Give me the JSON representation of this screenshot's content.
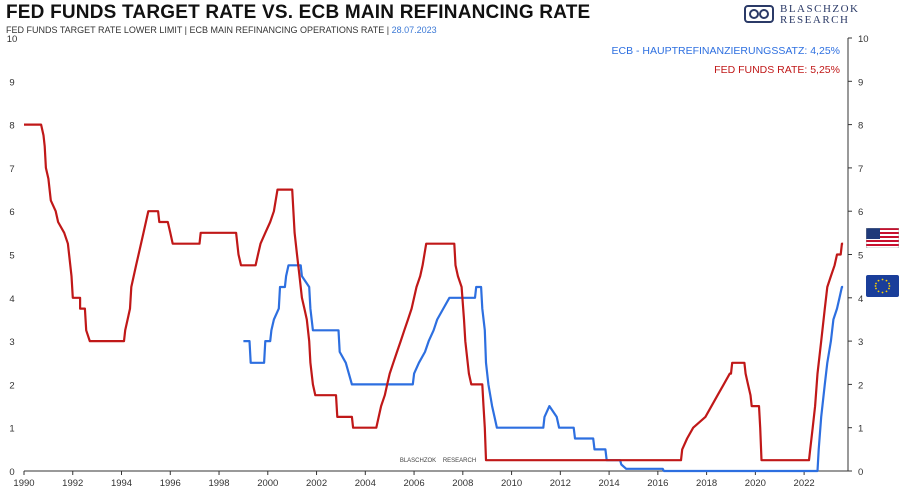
{
  "title": "FED FUNDS TARGET RATE  VS.  ECB MAIN REFINANCING RATE",
  "subtitle": "FED FUNDS TARGET RATE LOWER LIMIT | ECB MAIN REFINANCING OPERATIONS RATE |",
  "date": "28.07.2023",
  "logo": {
    "line1": "BLASCHZOK",
    "line2": "RESEARCH"
  },
  "watermark": "BLASCHZOK    RESEARCH",
  "flags": {
    "top": "us-flag-icon",
    "bottom": "eu-flag-icon"
  },
  "colors": {
    "fed": "#c01818",
    "ecb": "#2d6fe0",
    "axis": "#333333",
    "date": "#3d7ad6"
  },
  "chart_data": {
    "type": "line",
    "title": "FED FUNDS TARGET RATE  VS.  ECB MAIN REFINANCING RATE",
    "xlim": [
      1990,
      2023.8
    ],
    "ylim": [
      0,
      10
    ],
    "xticks": [
      1990,
      1992,
      1994,
      1996,
      1998,
      2000,
      2002,
      2004,
      2006,
      2008,
      2010,
      2012,
      2014,
      2016,
      2018,
      2020,
      2022
    ],
    "yticks": [
      0,
      1,
      2,
      3,
      4,
      5,
      6,
      7,
      8,
      9,
      10
    ],
    "grid": false,
    "legend_position": "top-right",
    "series": [
      {
        "name": "FED FUNDS RATE: 5,25%",
        "color": "#c01818",
        "points": [
          [
            1990.0,
            8.0
          ],
          [
            1990.7,
            8.0
          ],
          [
            1990.8,
            7.75
          ],
          [
            1990.85,
            7.5
          ],
          [
            1990.9,
            7.0
          ],
          [
            1991.0,
            6.75
          ],
          [
            1991.1,
            6.25
          ],
          [
            1991.3,
            6.0
          ],
          [
            1991.4,
            5.75
          ],
          [
            1991.65,
            5.5
          ],
          [
            1991.8,
            5.25
          ],
          [
            1991.85,
            5.0
          ],
          [
            1991.95,
            4.5
          ],
          [
            1992.0,
            4.0
          ],
          [
            1992.3,
            4.0
          ],
          [
            1992.3,
            3.75
          ],
          [
            1992.5,
            3.75
          ],
          [
            1992.55,
            3.25
          ],
          [
            1992.7,
            3.0
          ],
          [
            1994.1,
            3.0
          ],
          [
            1994.15,
            3.25
          ],
          [
            1994.25,
            3.5
          ],
          [
            1994.35,
            3.75
          ],
          [
            1994.4,
            4.25
          ],
          [
            1994.6,
            4.75
          ],
          [
            1994.9,
            5.5
          ],
          [
            1995.1,
            6.0
          ],
          [
            1995.5,
            6.0
          ],
          [
            1995.55,
            5.75
          ],
          [
            1995.9,
            5.75
          ],
          [
            1996.0,
            5.5
          ],
          [
            1996.1,
            5.25
          ],
          [
            1997.2,
            5.25
          ],
          [
            1997.25,
            5.5
          ],
          [
            1998.7,
            5.5
          ],
          [
            1998.75,
            5.25
          ],
          [
            1998.8,
            5.0
          ],
          [
            1998.9,
            4.75
          ],
          [
            1999.5,
            4.75
          ],
          [
            1999.6,
            5.0
          ],
          [
            1999.7,
            5.25
          ],
          [
            1999.9,
            5.5
          ],
          [
            2000.1,
            5.75
          ],
          [
            2000.25,
            6.0
          ],
          [
            2000.4,
            6.5
          ],
          [
            2001.0,
            6.5
          ],
          [
            2001.05,
            6.0
          ],
          [
            2001.1,
            5.5
          ],
          [
            2001.2,
            5.0
          ],
          [
            2001.3,
            4.5
          ],
          [
            2001.4,
            4.0
          ],
          [
            2001.5,
            3.75
          ],
          [
            2001.6,
            3.5
          ],
          [
            2001.7,
            3.0
          ],
          [
            2001.75,
            2.5
          ],
          [
            2001.85,
            2.0
          ],
          [
            2001.95,
            1.75
          ],
          [
            2002.8,
            1.75
          ],
          [
            2002.85,
            1.25
          ],
          [
            2003.45,
            1.25
          ],
          [
            2003.5,
            1.0
          ],
          [
            2004.45,
            1.0
          ],
          [
            2004.55,
            1.25
          ],
          [
            2004.65,
            1.5
          ],
          [
            2004.8,
            1.75
          ],
          [
            2004.9,
            2.0
          ],
          [
            2005.0,
            2.25
          ],
          [
            2005.15,
            2.5
          ],
          [
            2005.3,
            2.75
          ],
          [
            2005.45,
            3.0
          ],
          [
            2005.6,
            3.25
          ],
          [
            2005.75,
            3.5
          ],
          [
            2005.9,
            3.75
          ],
          [
            2006.1,
            4.25
          ],
          [
            2006.25,
            4.5
          ],
          [
            2006.35,
            4.75
          ],
          [
            2006.5,
            5.25
          ],
          [
            2007.65,
            5.25
          ],
          [
            2007.7,
            4.75
          ],
          [
            2007.8,
            4.5
          ],
          [
            2007.95,
            4.25
          ],
          [
            2008.05,
            3.5
          ],
          [
            2008.1,
            3.0
          ],
          [
            2008.25,
            2.25
          ],
          [
            2008.35,
            2.0
          ],
          [
            2008.8,
            2.0
          ],
          [
            2008.85,
            1.5
          ],
          [
            2008.9,
            1.0
          ],
          [
            2008.95,
            0.25
          ],
          [
            2015.95,
            0.25
          ],
          [
            2016.0,
            0.25
          ],
          [
            2016.95,
            0.25
          ],
          [
            2017.0,
            0.5
          ],
          [
            2017.2,
            0.75
          ],
          [
            2017.45,
            1.0
          ],
          [
            2017.95,
            1.25
          ],
          [
            2018.2,
            1.5
          ],
          [
            2018.45,
            1.75
          ],
          [
            2018.7,
            2.0
          ],
          [
            2018.95,
            2.25
          ],
          [
            2019.0,
            2.25
          ],
          [
            2019.05,
            2.5
          ],
          [
            2019.55,
            2.5
          ],
          [
            2019.6,
            2.25
          ],
          [
            2019.7,
            2.0
          ],
          [
            2019.8,
            1.75
          ],
          [
            2019.85,
            1.5
          ],
          [
            2020.15,
            1.5
          ],
          [
            2020.2,
            1.0
          ],
          [
            2020.25,
            0.25
          ],
          [
            2022.2,
            0.25
          ],
          [
            2022.25,
            0.5
          ],
          [
            2022.35,
            1.0
          ],
          [
            2022.45,
            1.5
          ],
          [
            2022.55,
            2.25
          ],
          [
            2022.7,
            3.0
          ],
          [
            2022.85,
            3.75
          ],
          [
            2022.95,
            4.25
          ],
          [
            2023.1,
            4.5
          ],
          [
            2023.25,
            4.75
          ],
          [
            2023.35,
            5.0
          ],
          [
            2023.5,
            5.0
          ],
          [
            2023.55,
            5.25
          ],
          [
            2023.6,
            5.25
          ]
        ]
      },
      {
        "name": "ECB - HAUPTREFINANZIERUNGSSATZ: 4,25%",
        "color": "#2d6fe0",
        "points": [
          [
            1999.0,
            3.0
          ],
          [
            1999.25,
            3.0
          ],
          [
            1999.3,
            2.5
          ],
          [
            1999.85,
            2.5
          ],
          [
            1999.9,
            3.0
          ],
          [
            2000.1,
            3.0
          ],
          [
            2000.15,
            3.25
          ],
          [
            2000.25,
            3.5
          ],
          [
            2000.45,
            3.75
          ],
          [
            2000.5,
            4.25
          ],
          [
            2000.7,
            4.25
          ],
          [
            2000.75,
            4.5
          ],
          [
            2000.85,
            4.75
          ],
          [
            2001.35,
            4.75
          ],
          [
            2001.4,
            4.5
          ],
          [
            2001.7,
            4.25
          ],
          [
            2001.75,
            3.75
          ],
          [
            2001.85,
            3.25
          ],
          [
            2002.9,
            3.25
          ],
          [
            2002.95,
            2.75
          ],
          [
            2003.2,
            2.5
          ],
          [
            2003.45,
            2.0
          ],
          [
            2005.95,
            2.0
          ],
          [
            2006.0,
            2.25
          ],
          [
            2006.2,
            2.5
          ],
          [
            2006.45,
            2.75
          ],
          [
            2006.6,
            3.0
          ],
          [
            2006.8,
            3.25
          ],
          [
            2006.95,
            3.5
          ],
          [
            2007.2,
            3.75
          ],
          [
            2007.45,
            4.0
          ],
          [
            2008.5,
            4.0
          ],
          [
            2008.55,
            4.25
          ],
          [
            2008.75,
            4.25
          ],
          [
            2008.8,
            3.75
          ],
          [
            2008.9,
            3.25
          ],
          [
            2008.95,
            2.5
          ],
          [
            2009.05,
            2.0
          ],
          [
            2009.2,
            1.5
          ],
          [
            2009.3,
            1.25
          ],
          [
            2009.4,
            1.0
          ],
          [
            2011.3,
            1.0
          ],
          [
            2011.35,
            1.25
          ],
          [
            2011.55,
            1.5
          ],
          [
            2011.85,
            1.25
          ],
          [
            2011.95,
            1.0
          ],
          [
            2012.55,
            1.0
          ],
          [
            2012.6,
            0.75
          ],
          [
            2013.35,
            0.75
          ],
          [
            2013.4,
            0.5
          ],
          [
            2013.85,
            0.5
          ],
          [
            2013.9,
            0.25
          ],
          [
            2014.45,
            0.25
          ],
          [
            2014.5,
            0.15
          ],
          [
            2014.7,
            0.05
          ],
          [
            2016.2,
            0.05
          ],
          [
            2016.25,
            0.0
          ],
          [
            2022.55,
            0.0
          ],
          [
            2022.6,
            0.5
          ],
          [
            2022.7,
            1.25
          ],
          [
            2022.85,
            2.0
          ],
          [
            2022.95,
            2.5
          ],
          [
            2023.1,
            3.0
          ],
          [
            2023.2,
            3.5
          ],
          [
            2023.35,
            3.75
          ],
          [
            2023.45,
            4.0
          ],
          [
            2023.55,
            4.25
          ],
          [
            2023.6,
            4.25
          ]
        ]
      }
    ]
  }
}
